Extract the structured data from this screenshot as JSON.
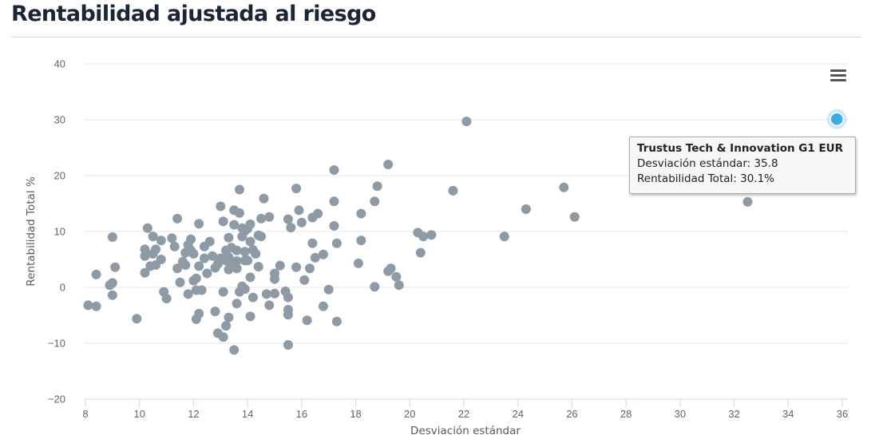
{
  "page": {
    "title": "Rentabilidad ajustada al riesgo"
  },
  "colors": {
    "point": "#8e9ba6",
    "highlight": "#3aabe5",
    "grid": "#e6e6e6",
    "axis": "#ccd6eb"
  },
  "menu": {
    "icon": "hamburger-menu-icon"
  },
  "tooltip": {
    "name": "Trustus Tech & Innovation G1 EUR",
    "x_label": "Desviación estándar",
    "x_value": "35.8",
    "y_label": "Rentabilidad Total",
    "y_value": "30.1%"
  },
  "chart_data": {
    "type": "scatter",
    "title": "",
    "xlabel": "Desviación estándar",
    "ylabel": "Rentabilidad Total %",
    "xlim": [
      8,
      36
    ],
    "ylim": [
      -20,
      40
    ],
    "xticks": [
      "8",
      "10",
      "12",
      "14",
      "16",
      "18",
      "20",
      "22",
      "24",
      "26",
      "28",
      "30",
      "32",
      "34",
      "36"
    ],
    "yticks": [
      "−20",
      "−10",
      "0",
      "10",
      "20",
      "30",
      "40"
    ],
    "grid": "horizontal",
    "highlighted_point": {
      "name": "Trustus Tech & Innovation G1 EUR",
      "x": 35.8,
      "y": 30.1
    },
    "points": [
      [
        8.1,
        -3.2
      ],
      [
        8.4,
        -3.4
      ],
      [
        8.4,
        2.3
      ],
      [
        8.9,
        0.4
      ],
      [
        9.0,
        0.8
      ],
      [
        9.0,
        -1.4
      ],
      [
        9.0,
        9.0
      ],
      [
        9.1,
        3.6
      ],
      [
        9.9,
        -5.6
      ],
      [
        10.2,
        6.8
      ],
      [
        10.2,
        5.6
      ],
      [
        10.2,
        2.6
      ],
      [
        10.3,
        10.6
      ],
      [
        10.4,
        3.8
      ],
      [
        10.5,
        9.1
      ],
      [
        10.5,
        6.0
      ],
      [
        10.6,
        6.8
      ],
      [
        10.6,
        4.0
      ],
      [
        10.8,
        8.4
      ],
      [
        10.8,
        5.0
      ],
      [
        10.9,
        -0.8
      ],
      [
        11.0,
        -2.0
      ],
      [
        11.2,
        8.8
      ],
      [
        11.3,
        7.3
      ],
      [
        11.4,
        12.3
      ],
      [
        11.4,
        3.4
      ],
      [
        11.5,
        0.9
      ],
      [
        11.6,
        4.6
      ],
      [
        11.7,
        6.2
      ],
      [
        11.7,
        4.0
      ],
      [
        11.8,
        -1.2
      ],
      [
        11.8,
        7.6
      ],
      [
        11.9,
        8.6
      ],
      [
        11.9,
        6.6
      ],
      [
        12.0,
        1.2
      ],
      [
        12.0,
        6.0
      ],
      [
        12.1,
        -0.5
      ],
      [
        12.1,
        1.6
      ],
      [
        12.1,
        -5.7
      ],
      [
        12.2,
        11.4
      ],
      [
        12.2,
        3.8
      ],
      [
        12.2,
        -4.7
      ],
      [
        12.3,
        -0.5
      ],
      [
        12.4,
        7.3
      ],
      [
        12.4,
        5.2
      ],
      [
        12.5,
        2.5
      ],
      [
        12.6,
        8.2
      ],
      [
        12.7,
        5.6
      ],
      [
        12.8,
        3.5
      ],
      [
        12.8,
        -4.3
      ],
      [
        12.9,
        4.2
      ],
      [
        12.9,
        -8.2
      ],
      [
        13.0,
        14.5
      ],
      [
        13.0,
        5.2
      ],
      [
        13.1,
        11.8
      ],
      [
        13.1,
        -8.9
      ],
      [
        13.1,
        -0.8
      ],
      [
        13.2,
        6.6
      ],
      [
        13.2,
        4.8
      ],
      [
        13.2,
        -6.9
      ],
      [
        13.3,
        8.9
      ],
      [
        13.3,
        5.4
      ],
      [
        13.3,
        3.2
      ],
      [
        13.3,
        -5.4
      ],
      [
        13.4,
        7.1
      ],
      [
        13.4,
        4.2
      ],
      [
        13.5,
        13.8
      ],
      [
        13.5,
        11.2
      ],
      [
        13.5,
        -11.2
      ],
      [
        13.6,
        -2.9
      ],
      [
        13.6,
        6.6
      ],
      [
        13.6,
        4.7
      ],
      [
        13.6,
        3.4
      ],
      [
        13.7,
        17.5
      ],
      [
        13.7,
        13.3
      ],
      [
        13.7,
        -0.8
      ],
      [
        13.8,
        10.6
      ],
      [
        13.8,
        9.1
      ],
      [
        13.8,
        0.2
      ],
      [
        13.9,
        10.1
      ],
      [
        13.9,
        6.4
      ],
      [
        13.9,
        4.8
      ],
      [
        13.9,
        -0.3
      ],
      [
        14.0,
        4.8
      ],
      [
        14.0,
        10.5
      ],
      [
        14.1,
        11.3
      ],
      [
        14.1,
        8.2
      ],
      [
        14.1,
        1.8
      ],
      [
        14.1,
        -5.2
      ],
      [
        14.2,
        6.7
      ],
      [
        14.2,
        -1.8
      ],
      [
        14.3,
        6.0
      ],
      [
        14.4,
        9.3
      ],
      [
        14.4,
        3.7
      ],
      [
        14.5,
        12.3
      ],
      [
        14.5,
        9.1
      ],
      [
        14.6,
        15.9
      ],
      [
        14.7,
        -1.2
      ],
      [
        14.8,
        12.6
      ],
      [
        14.8,
        -3.2
      ],
      [
        15.0,
        2.5
      ],
      [
        15.0,
        1.5
      ],
      [
        15.0,
        -1.1
      ],
      [
        15.2,
        3.9
      ],
      [
        15.4,
        -0.7
      ],
      [
        15.5,
        12.2
      ],
      [
        15.5,
        -1.8
      ],
      [
        15.5,
        -4.0
      ],
      [
        15.5,
        -4.9
      ],
      [
        15.5,
        -10.3
      ],
      [
        15.6,
        10.7
      ],
      [
        15.8,
        17.7
      ],
      [
        15.8,
        3.6
      ],
      [
        15.9,
        13.8
      ],
      [
        16.0,
        11.6
      ],
      [
        16.1,
        1.3
      ],
      [
        16.2,
        -5.9
      ],
      [
        16.3,
        3.4
      ],
      [
        16.4,
        12.5
      ],
      [
        16.4,
        7.9
      ],
      [
        16.5,
        5.3
      ],
      [
        16.6,
        13.2
      ],
      [
        16.8,
        5.9
      ],
      [
        16.8,
        -3.4
      ],
      [
        17.0,
        -0.4
      ],
      [
        17.2,
        21.0
      ],
      [
        17.2,
        15.4
      ],
      [
        17.2,
        11.0
      ],
      [
        17.3,
        7.9
      ],
      [
        17.3,
        -6.1
      ],
      [
        18.1,
        4.3
      ],
      [
        18.2,
        13.2
      ],
      [
        18.2,
        8.4
      ],
      [
        18.7,
        15.4
      ],
      [
        18.7,
        0.1
      ],
      [
        18.8,
        18.1
      ],
      [
        19.2,
        22.0
      ],
      [
        19.2,
        2.9
      ],
      [
        19.3,
        3.4
      ],
      [
        19.5,
        1.9
      ],
      [
        19.6,
        0.4
      ],
      [
        20.3,
        9.8
      ],
      [
        20.4,
        6.2
      ],
      [
        20.5,
        9.1
      ],
      [
        20.8,
        9.4
      ],
      [
        21.6,
        17.3
      ],
      [
        22.1,
        29.7
      ],
      [
        23.5,
        9.1
      ],
      [
        24.3,
        14.0
      ],
      [
        25.7,
        17.9
      ],
      [
        26.1,
        12.6
      ],
      [
        32.5,
        15.3
      ]
    ]
  }
}
